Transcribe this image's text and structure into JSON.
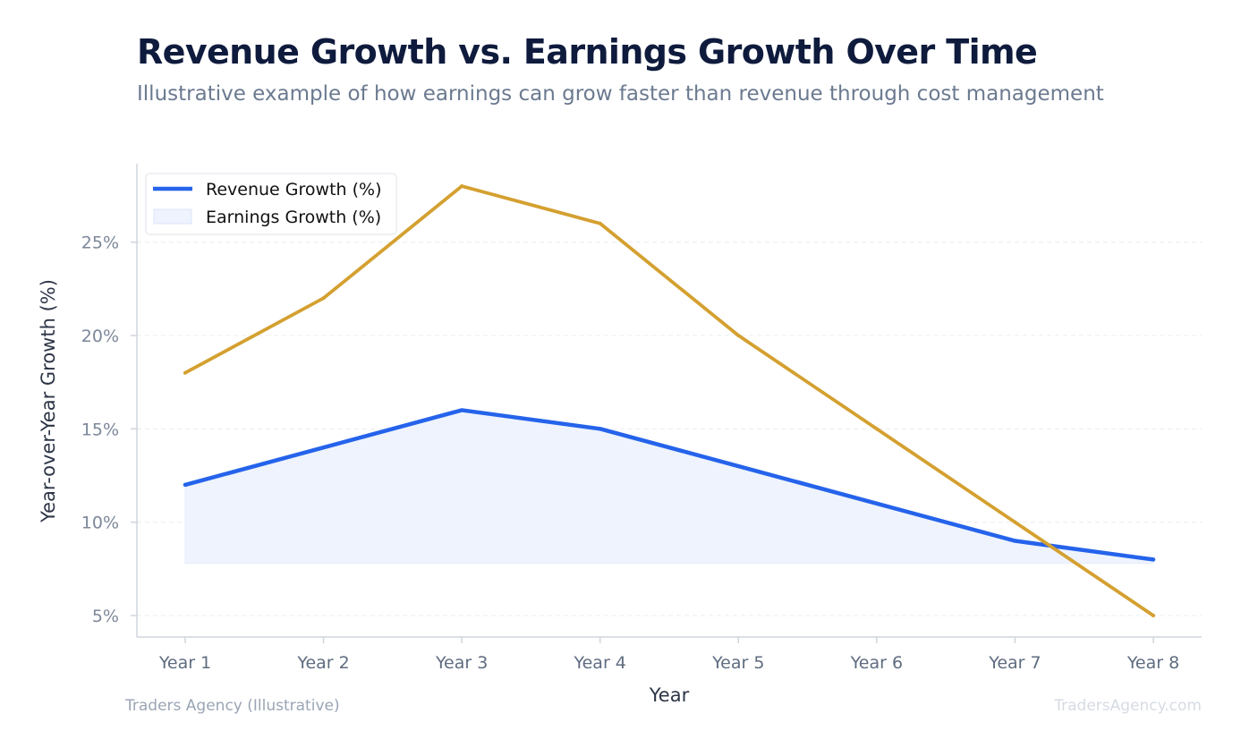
{
  "header": {
    "title": "Revenue Growth vs. Earnings Growth Over Time",
    "subtitle": "Illustrative example of how earnings can grow faster than revenue through cost management"
  },
  "footer": {
    "source": "Traders Agency (Illustrative)",
    "watermark": "TradersAgency.com"
  },
  "chart_data": {
    "type": "line",
    "categories": [
      "Year 1",
      "Year 2",
      "Year 3",
      "Year 4",
      "Year 5",
      "Year 6",
      "Year 7",
      "Year 8"
    ],
    "series": [
      {
        "name": "Revenue Growth (%)",
        "values": [
          12,
          14,
          16,
          15,
          13,
          11,
          9,
          8
        ],
        "color": "#2563eb",
        "fill": "#eef3fd",
        "filled": true
      },
      {
        "name": "Earnings Growth (%)",
        "values": [
          18,
          22,
          28,
          26,
          20,
          15,
          10,
          5
        ],
        "color": "#d4a030",
        "filled": false
      }
    ],
    "legend_entries": [
      "Revenue Growth (%)",
      "Earnings Growth (%)"
    ],
    "legend_position": "top-left",
    "xlabel": "Year",
    "ylabel": "Year-over-Year Growth (%)",
    "ylim": [
      3.85,
      29.2
    ],
    "fill_baseline": 7.8,
    "yticks": [
      5,
      10,
      15,
      20,
      25
    ],
    "ytick_labels": [
      "5%",
      "10%",
      "15%",
      "20%",
      "25%"
    ],
    "grid": true
  }
}
